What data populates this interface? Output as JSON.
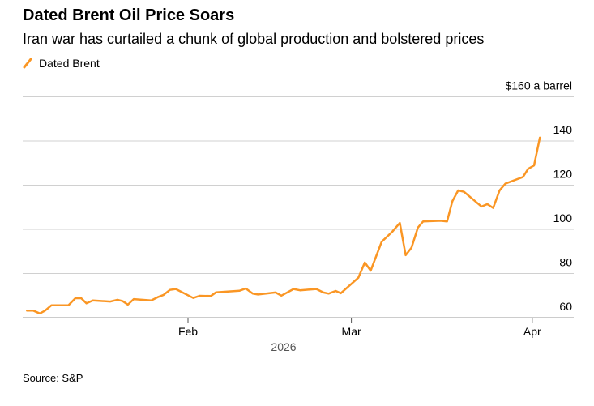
{
  "title": "Dated Brent Oil Price Soars",
  "subtitle": "Iran war has curtailed a chunk of global production and bolstered prices",
  "source": "Source: S&P",
  "chart_data": {
    "type": "line",
    "title": "Dated Brent Oil Price Soars",
    "xlabel": "2026",
    "ylabel": "$160 a barrel",
    "ylim": [
      60,
      160
    ],
    "yticks": [
      {
        "v": 160,
        "label": "$160 a barrel"
      },
      {
        "v": 140,
        "label": "140"
      },
      {
        "v": 120,
        "label": "120"
      },
      {
        "v": 100,
        "label": "100"
      },
      {
        "v": 80,
        "label": "80"
      },
      {
        "v": 60,
        "label": "60"
      }
    ],
    "xticks": [
      {
        "day": 31,
        "label": "Feb"
      },
      {
        "day": 59,
        "label": "Mar"
      },
      {
        "day": 90,
        "label": "Apr"
      }
    ],
    "x_unit": "days since Jan 1, 2026",
    "grid": true,
    "legend_position": "top-left",
    "series": [
      {
        "name": "Dated Brent",
        "color": "#fa9624",
        "points": [
          [
            3.4,
            63.2
          ],
          [
            4.5,
            63.2
          ],
          [
            5.6,
            61.9
          ],
          [
            6.5,
            63.2
          ],
          [
            7.6,
            65.6
          ],
          [
            10.5,
            65.6
          ],
          [
            11.7,
            68.8
          ],
          [
            12.7,
            68.8
          ],
          [
            13.6,
            66.5
          ],
          [
            14.7,
            67.8
          ],
          [
            17.7,
            67.3
          ],
          [
            18.9,
            68.1
          ],
          [
            19.8,
            67.5
          ],
          [
            20.7,
            65.9
          ],
          [
            21.7,
            68.4
          ],
          [
            24.7,
            67.8
          ],
          [
            25.8,
            69.3
          ],
          [
            26.8,
            70.3
          ],
          [
            27.9,
            72.6
          ],
          [
            28.9,
            73.0
          ],
          [
            31.9,
            68.9
          ],
          [
            33.0,
            69.9
          ],
          [
            34.9,
            69.8
          ],
          [
            35.8,
            71.5
          ],
          [
            39.8,
            72.2
          ],
          [
            40.9,
            73.2
          ],
          [
            42.1,
            70.9
          ],
          [
            43.0,
            70.5
          ],
          [
            46.0,
            71.4
          ],
          [
            47.0,
            70.0
          ],
          [
            49.1,
            73.0
          ],
          [
            50.2,
            72.4
          ],
          [
            53.0,
            73.0
          ],
          [
            54.2,
            71.4
          ],
          [
            55.1,
            70.9
          ],
          [
            56.3,
            72.1
          ],
          [
            57.2,
            71.1
          ],
          [
            60.2,
            78.1
          ],
          [
            61.3,
            85.0
          ],
          [
            62.3,
            81.3
          ],
          [
            64.2,
            94.4
          ],
          [
            66.0,
            98.9
          ],
          [
            67.3,
            102.9
          ],
          [
            68.3,
            88.3
          ],
          [
            69.3,
            91.7
          ],
          [
            70.4,
            100.8
          ],
          [
            71.3,
            103.6
          ],
          [
            74.3,
            103.9
          ],
          [
            75.4,
            103.6
          ],
          [
            76.3,
            112.7
          ],
          [
            77.3,
            117.6
          ],
          [
            78.3,
            117.0
          ],
          [
            81.3,
            110.3
          ],
          [
            82.3,
            111.4
          ],
          [
            83.3,
            109.7
          ],
          [
            84.4,
            117.6
          ],
          [
            85.4,
            120.7
          ],
          [
            88.4,
            123.7
          ],
          [
            89.3,
            127.4
          ],
          [
            90.3,
            128.9
          ],
          [
            91.3,
            141.5
          ]
        ]
      }
    ]
  }
}
